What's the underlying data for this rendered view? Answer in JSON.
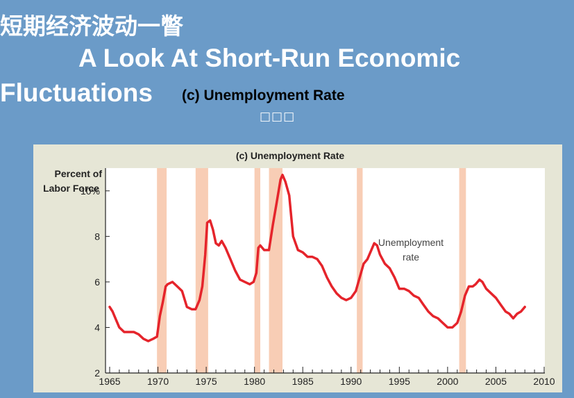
{
  "slide": {
    "title_cn": "短期经济波动一瞥",
    "title_en_line1": "A Look At Short-Run Economic",
    "title_en_line2": "Fluctuations",
    "subtitle": "(c) Unemployment Rate",
    "placeholder": "□□□"
  },
  "chart_data": {
    "type": "line",
    "title": "(c) Unemployment Rate",
    "ylabel_line1": "Percent of",
    "ylabel_line2": "Labor Force",
    "xlim": [
      1965,
      2010
    ],
    "ylim": [
      2,
      11
    ],
    "x_ticks": [
      1965,
      1970,
      1975,
      1980,
      1985,
      1990,
      1995,
      2000,
      2005,
      2010
    ],
    "x_tick_labels": [
      "1965",
      "1970",
      "1975",
      "1980",
      "1985",
      "1990",
      "1995",
      "2000",
      "2005",
      "2010"
    ],
    "y_ticks": [
      2,
      4,
      6,
      8,
      10
    ],
    "y_tick_labels": [
      "2",
      "4",
      "6",
      "8",
      "10%"
    ],
    "recessions": [
      [
        1969.9,
        1970.9
      ],
      [
        1973.9,
        1975.2
      ],
      [
        1980.0,
        1980.6
      ],
      [
        1981.5,
        1982.9
      ],
      [
        1990.6,
        1991.2
      ],
      [
        2001.2,
        2001.9
      ]
    ],
    "annotation_line1": "Unemployment",
    "annotation_line2": "rate",
    "series_color": "#e5242b",
    "recession_color": "#f8cdb5",
    "series": [
      {
        "name": "Unemployment rate",
        "x": [
          1965.0,
          1965.3,
          1965.6,
          1966.0,
          1966.5,
          1967.0,
          1967.5,
          1968.0,
          1968.5,
          1969.0,
          1969.5,
          1969.9,
          1970.2,
          1970.5,
          1970.8,
          1971.0,
          1971.5,
          1972.0,
          1972.5,
          1973.0,
          1973.5,
          1973.9,
          1974.3,
          1974.6,
          1974.9,
          1975.1,
          1975.4,
          1975.7,
          1976.0,
          1976.3,
          1976.6,
          1977.0,
          1977.5,
          1978.0,
          1978.5,
          1979.0,
          1979.5,
          1979.9,
          1980.2,
          1980.4,
          1980.6,
          1981.0,
          1981.5,
          1981.9,
          1982.3,
          1982.7,
          1982.9,
          1983.2,
          1983.6,
          1984.0,
          1984.5,
          1985.0,
          1985.5,
          1986.0,
          1986.5,
          1987.0,
          1987.5,
          1988.0,
          1988.5,
          1989.0,
          1989.5,
          1990.0,
          1990.5,
          1990.9,
          1991.3,
          1991.7,
          1992.0,
          1992.4,
          1992.7,
          1993.0,
          1993.5,
          1994.0,
          1994.5,
          1995.0,
          1995.5,
          1996.0,
          1996.5,
          1997.0,
          1997.5,
          1998.0,
          1998.5,
          1999.0,
          1999.5,
          2000.0,
          2000.5,
          2001.0,
          2001.4,
          2001.8,
          2002.2,
          2002.6,
          2002.9,
          2003.3,
          2003.6,
          2004.0,
          2004.5,
          2005.0,
          2005.5,
          2006.0,
          2006.4,
          2006.8,
          2007.2,
          2007.6,
          2008.0
        ],
        "values": [
          4.9,
          4.7,
          4.4,
          4.0,
          3.8,
          3.8,
          3.8,
          3.7,
          3.5,
          3.4,
          3.5,
          3.6,
          4.5,
          5.1,
          5.8,
          5.9,
          6.0,
          5.8,
          5.6,
          4.9,
          4.8,
          4.8,
          5.2,
          5.8,
          7.2,
          8.6,
          8.7,
          8.3,
          7.7,
          7.6,
          7.8,
          7.5,
          7.0,
          6.5,
          6.1,
          6.0,
          5.9,
          6.0,
          6.4,
          7.5,
          7.6,
          7.4,
          7.4,
          8.5,
          9.5,
          10.5,
          10.7,
          10.4,
          9.8,
          8.0,
          7.4,
          7.3,
          7.1,
          7.1,
          7.0,
          6.7,
          6.2,
          5.8,
          5.5,
          5.3,
          5.2,
          5.3,
          5.6,
          6.2,
          6.8,
          7.0,
          7.3,
          7.7,
          7.6,
          7.2,
          6.8,
          6.6,
          6.2,
          5.7,
          5.7,
          5.6,
          5.4,
          5.3,
          5.0,
          4.7,
          4.5,
          4.4,
          4.2,
          4.0,
          4.0,
          4.2,
          4.7,
          5.4,
          5.8,
          5.8,
          5.9,
          6.1,
          6.0,
          5.7,
          5.5,
          5.3,
          5.0,
          4.7,
          4.6,
          4.4,
          4.6,
          4.7,
          4.9
        ]
      }
    ]
  }
}
